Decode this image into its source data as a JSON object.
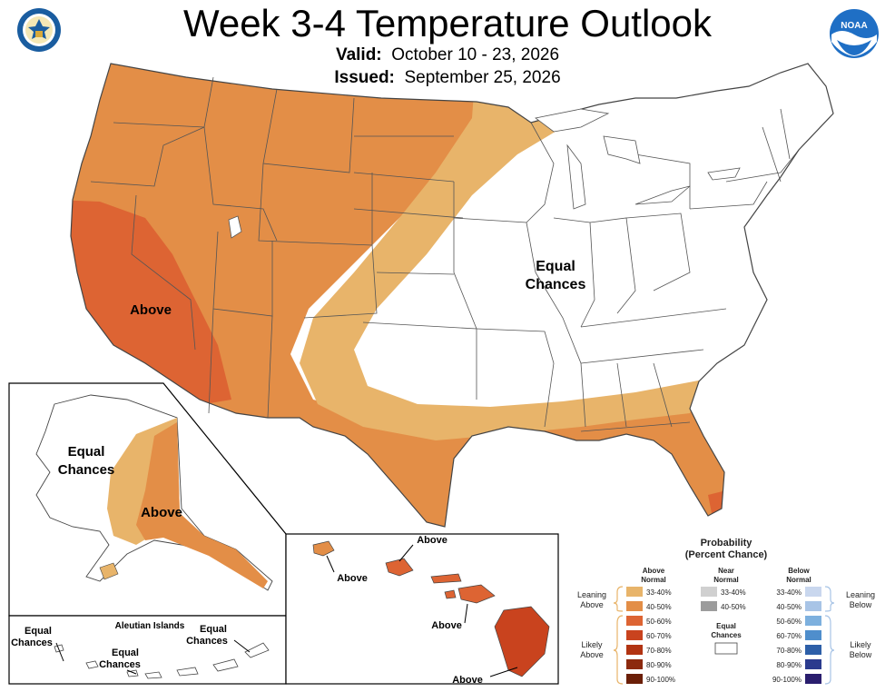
{
  "header": {
    "title": "Week 3-4 Temperature Outlook",
    "valid_label": "Valid:",
    "valid_value": "October 10 - 23, 2026",
    "issued_label": "Issued:",
    "issued_value": "September 25, 2026"
  },
  "logos": {
    "left": "department-of-commerce-seal",
    "right": "noaa-logo",
    "right_text": "NOAA"
  },
  "colors": {
    "above_33_40": "#E8B46A",
    "above_40_50": "#E38E47",
    "above_50_60": "#DD6433",
    "above_60_70": "#C9431E",
    "above_70_80": "#B23412",
    "above_80_90": "#8C2A0E",
    "above_90_100": "#6B1F08",
    "near_33_40": "#D0D0D0",
    "near_40_50": "#9C9C9C",
    "below_33_40": "#C9D7EE",
    "below_40_50": "#A8C4E6",
    "below_50_60": "#7DB0DE",
    "below_60_70": "#4F8ECC",
    "below_70_80": "#2D5FA8",
    "below_80_90": "#2B3B8E",
    "below_90_100": "#2A1E6E"
  },
  "map_labels": {
    "conus_equal": [
      "Equal",
      "Chances"
    ],
    "conus_above": "Above",
    "alaska_equal": [
      "Equal",
      "Chances"
    ],
    "alaska_above": "Above",
    "hawaii_above_1": "Above",
    "hawaii_above_2": "Above",
    "hawaii_above_3": "Above",
    "hawaii_above_4": "Above",
    "aleutian_title": "Aleutian Islands",
    "aleutian_equal_1": [
      "Equal",
      "Chances"
    ],
    "aleutian_equal_2": [
      "Equal",
      "Chances"
    ],
    "aleutian_equal_3": [
      "Equal",
      "Chances"
    ]
  },
  "legend": {
    "title_1": "Probability",
    "title_2": "(Percent Chance)",
    "above_header": [
      "Above",
      "Normal"
    ],
    "near_header": [
      "Near",
      "Normal"
    ],
    "below_header": [
      "Below",
      "Normal"
    ],
    "above_levels": [
      "33-40%",
      "40-50%",
      "50-60%",
      "60-70%",
      "70-80%",
      "80-90%",
      "90-100%"
    ],
    "near_levels": [
      "33-40%",
      "40-50%"
    ],
    "below_levels": [
      "33-40%",
      "40-50%",
      "50-60%",
      "60-70%",
      "70-80%",
      "80-90%",
      "90-100%"
    ],
    "equal_chances": [
      "Equal",
      "Chances"
    ],
    "leaning_above": [
      "Leaning",
      "Above"
    ],
    "likely_above": [
      "Likely",
      "Above"
    ],
    "leaning_below": [
      "Leaning",
      "Below"
    ],
    "likely_below": [
      "Likely",
      "Below"
    ]
  }
}
